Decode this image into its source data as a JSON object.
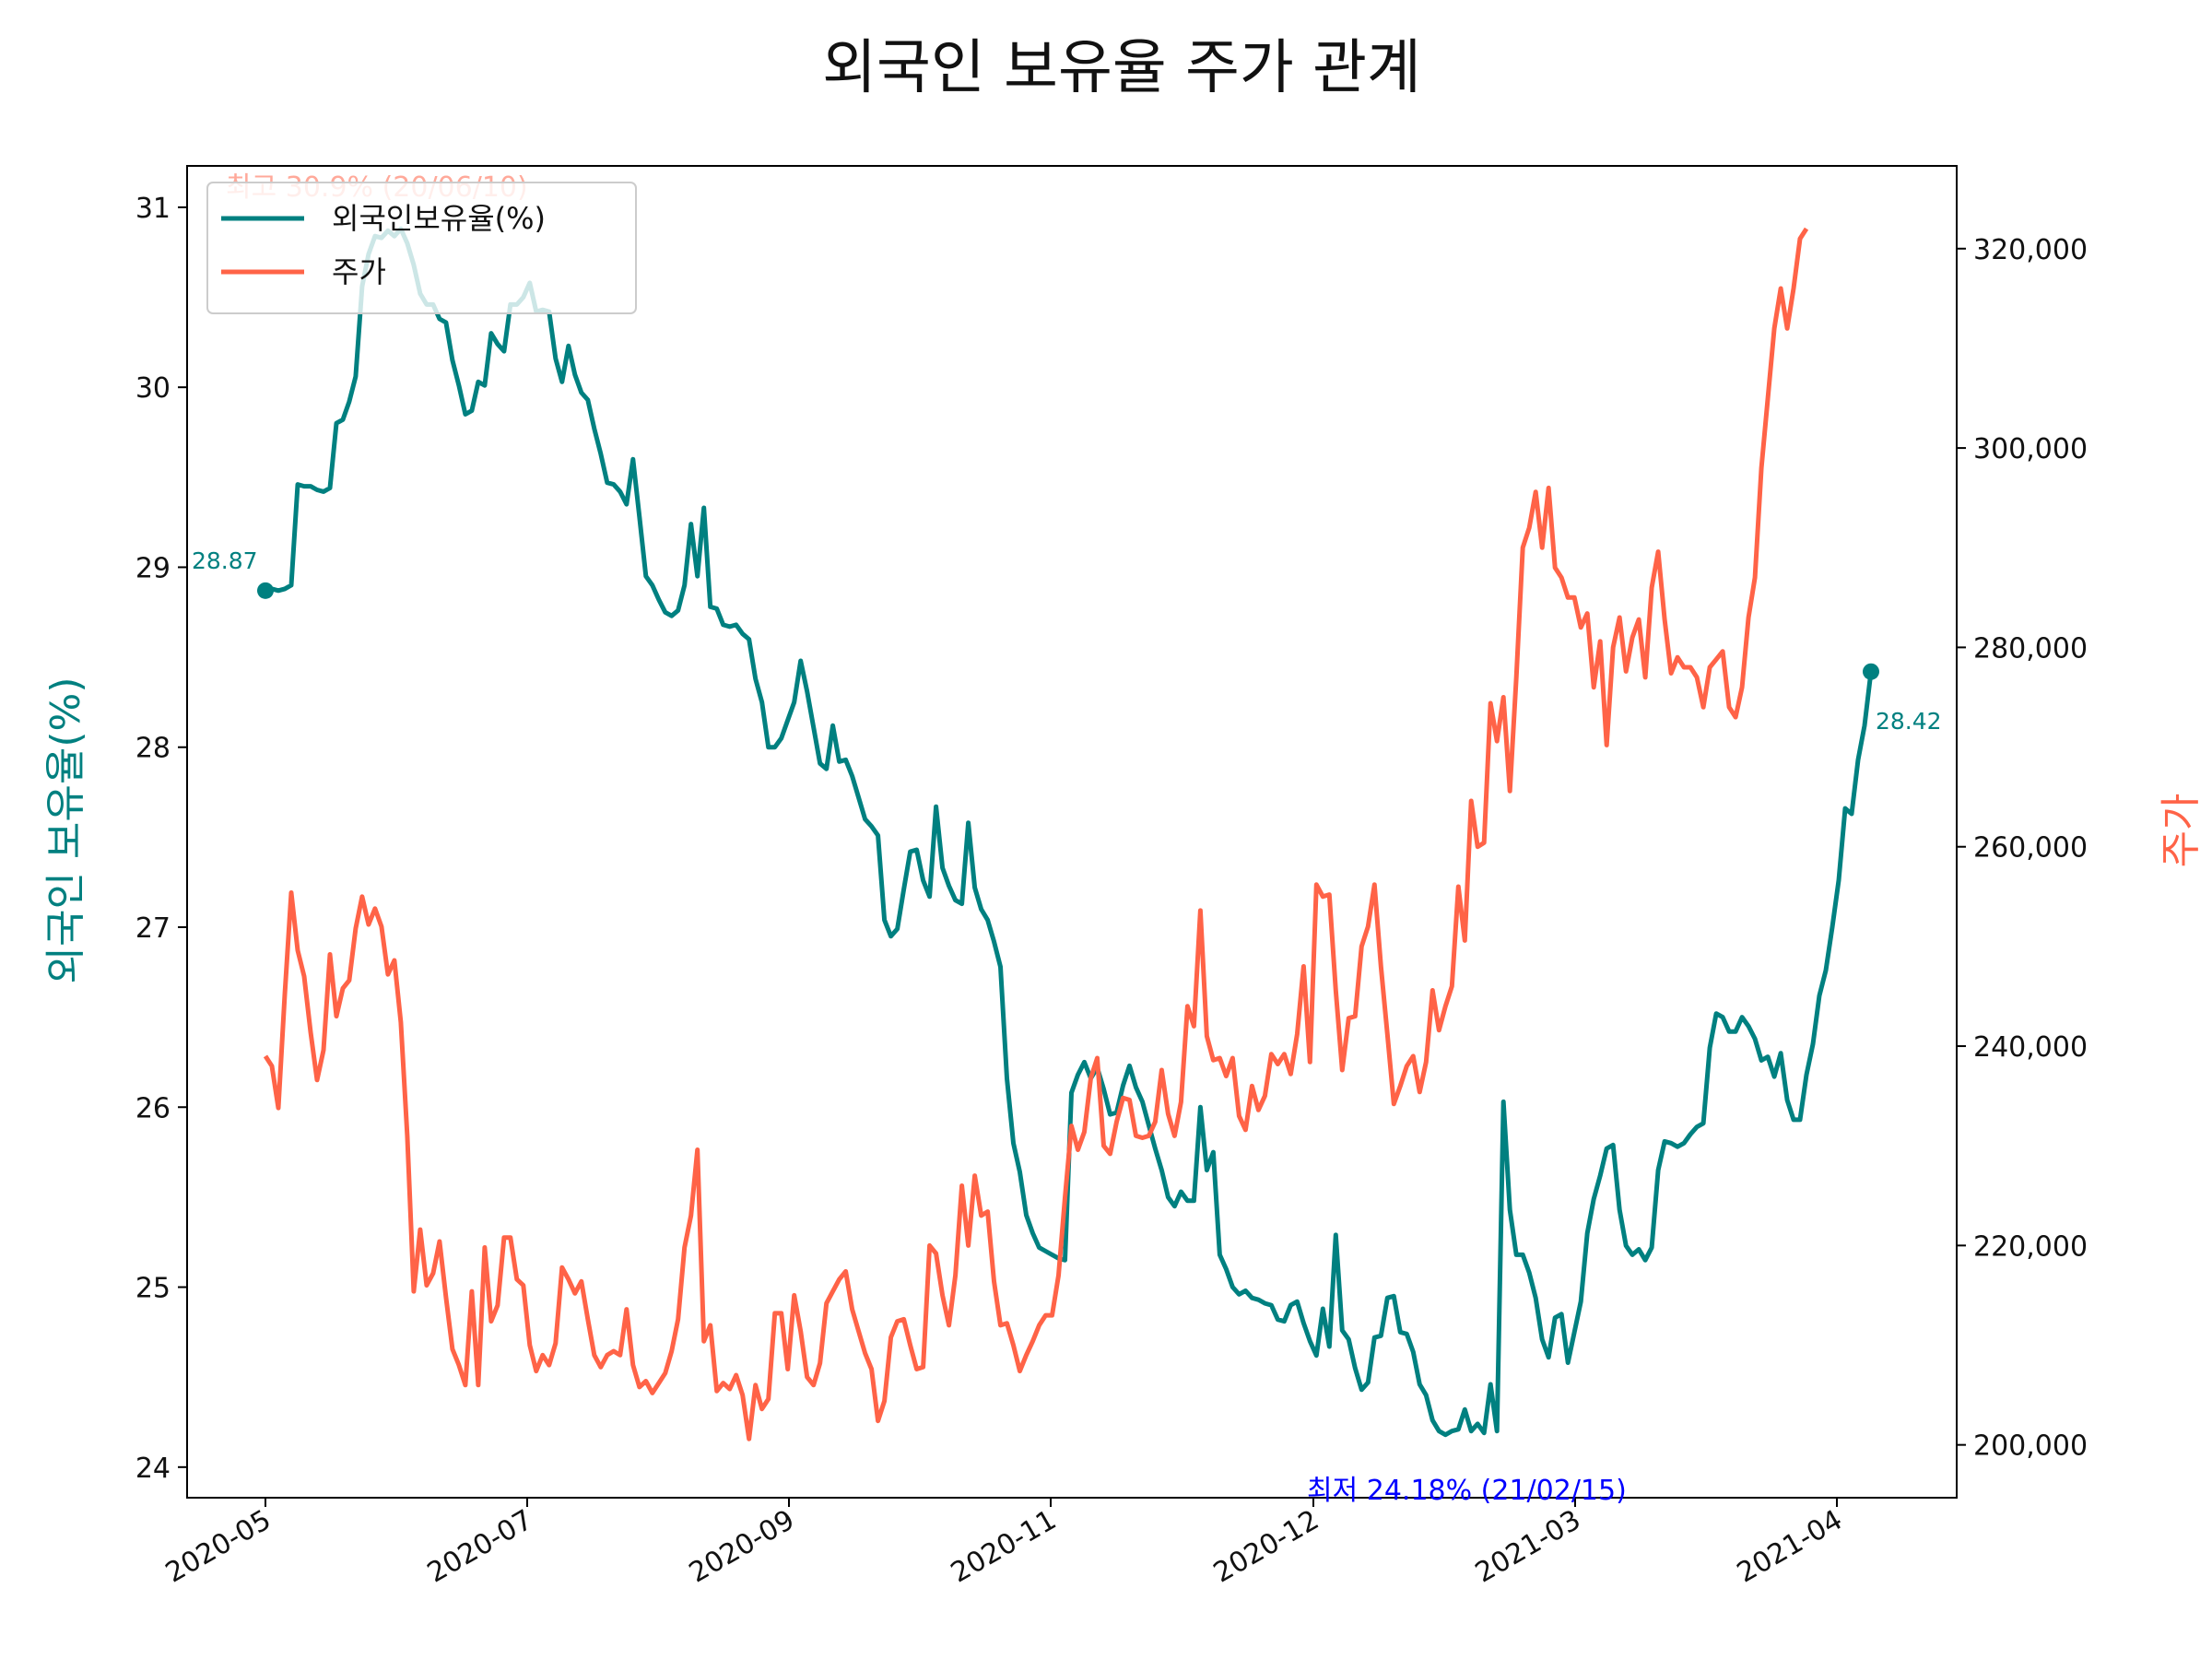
{
  "chart_data": {
    "type": "line",
    "title": "외국인 보유율 주가 관계",
    "ylabel_left": "외국인 보유율(%)",
    "ylabel_right": "주가",
    "xlabel": "",
    "x_tick_labels": [
      "2020-05",
      "2020-07",
      "2020-09",
      "2020-11",
      "2020-12",
      "2021-03",
      "2021-04"
    ],
    "y_left_ticks": [
      "24",
      "25",
      "26",
      "27",
      "28",
      "29",
      "30",
      "31"
    ],
    "y_right_ticks": [
      "200,000",
      "220,000",
      "240,000",
      "260,000",
      "280,000",
      "300,000",
      "320,000"
    ],
    "y_left_range": [
      23.83,
      31.23
    ],
    "y_right_range": [
      194700,
      328300
    ],
    "legend_position": "top-left",
    "grid": false,
    "series": [
      {
        "name": "외국인보유율(%)",
        "axis": "left",
        "color": "#008080",
        "values": [
          28.87,
          28.88,
          28.87,
          28.88,
          28.9,
          29.46,
          29.45,
          29.45,
          29.43,
          29.42,
          29.44,
          29.8,
          29.82,
          29.92,
          30.06,
          30.56,
          30.74,
          30.84,
          30.83,
          30.87,
          30.84,
          30.88,
          30.8,
          30.68,
          30.52,
          30.46,
          30.46,
          30.38,
          30.36,
          30.15,
          30.01,
          29.85,
          29.87,
          30.03,
          30.01,
          30.3,
          30.24,
          30.2,
          30.46,
          30.46,
          30.5,
          30.58,
          30.42,
          30.43,
          30.42,
          30.16,
          30.03,
          30.23,
          30.07,
          29.97,
          29.93,
          29.77,
          29.63,
          29.47,
          29.46,
          29.42,
          29.35,
          29.6,
          29.28,
          28.95,
          28.9,
          28.82,
          28.75,
          28.73,
          28.76,
          28.9,
          29.24,
          28.95,
          29.33,
          28.78,
          28.77,
          28.68,
          28.67,
          28.68,
          28.63,
          28.6,
          28.38,
          28.25,
          28.0,
          28.0,
          28.05,
          28.15,
          28.25,
          28.48,
          28.31,
          28.11,
          27.91,
          27.88,
          28.12,
          27.92,
          27.93,
          27.84,
          27.72,
          27.6,
          27.56,
          27.51,
          27.04,
          26.95,
          26.99,
          27.21,
          27.42,
          27.43,
          27.26,
          27.17,
          27.67,
          27.33,
          27.23,
          27.15,
          27.13,
          27.58,
          27.22,
          27.1,
          27.04,
          26.92,
          26.78,
          26.16,
          25.8,
          25.64,
          25.4,
          25.3,
          25.22,
          25.2,
          25.18,
          25.16,
          25.15,
          26.08,
          26.18,
          26.25,
          26.16,
          26.22,
          26.1,
          25.96,
          25.97,
          26.12,
          26.23,
          26.11,
          26.03,
          25.9,
          25.77,
          25.65,
          25.5,
          25.45,
          25.53,
          25.48,
          25.48,
          26.0,
          25.65,
          25.75,
          25.18,
          25.1,
          25.0,
          24.96,
          24.98,
          24.94,
          24.93,
          24.91,
          24.9,
          24.82,
          24.81,
          24.9,
          24.92,
          24.8,
          24.7,
          24.62,
          24.88,
          24.67,
          25.29,
          24.76,
          24.71,
          24.55,
          24.43,
          24.47,
          24.72,
          24.73,
          24.94,
          24.95,
          24.75,
          24.74,
          24.64,
          24.46,
          24.4,
          24.26,
          24.2,
          24.18,
          24.2,
          24.21,
          24.32,
          24.2,
          24.24,
          24.19,
          24.46,
          24.2,
          26.03,
          25.43,
          25.18,
          25.18,
          25.08,
          24.94,
          24.71,
          24.61,
          24.83,
          24.85,
          24.58,
          24.75,
          24.92,
          25.3,
          25.49,
          25.62,
          25.77,
          25.79,
          25.43,
          25.23,
          25.18,
          25.21,
          25.15,
          25.22,
          25.65,
          25.81,
          25.8,
          25.78,
          25.8,
          25.85,
          25.89,
          25.91,
          26.33,
          26.52,
          26.5,
          26.42,
          26.42,
          26.5,
          26.45,
          26.38,
          26.26,
          26.28,
          26.17,
          26.3,
          26.04,
          25.93,
          25.93,
          26.18,
          26.35,
          26.62,
          26.76,
          27.0,
          27.26,
          27.66,
          27.63,
          27.93,
          28.12,
          28.42
        ]
      },
      {
        "name": "주가",
        "axis": "right",
        "color": "#FF6347",
        "values": [
          239000,
          238000,
          233800,
          245200,
          255400,
          249600,
          247000,
          241400,
          236600,
          239600,
          249200,
          243000,
          245800,
          246600,
          251800,
          255000,
          252200,
          253800,
          252000,
          247200,
          248600,
          242400,
          231000,
          215400,
          221600,
          216000,
          217200,
          220400,
          214800,
          209600,
          208000,
          206000,
          215400,
          206000,
          219800,
          212400,
          214000,
          220800,
          220800,
          216600,
          216000,
          210000,
          207400,
          209000,
          208000,
          210200,
          217800,
          216600,
          215200,
          216400,
          212600,
          209000,
          207800,
          209000,
          209400,
          209000,
          213600,
          208000,
          205800,
          206400,
          205200,
          206200,
          207200,
          209400,
          212600,
          219800,
          223000,
          229600,
          210400,
          212000,
          205400,
          206200,
          205600,
          207000,
          205000,
          200600,
          206000,
          203600,
          204600,
          213200,
          213200,
          207600,
          215000,
          211400,
          206800,
          206000,
          208200,
          214200,
          215400,
          216600,
          217400,
          213600,
          211400,
          209200,
          207600,
          202400,
          204400,
          210800,
          212400,
          212600,
          210000,
          207600,
          207800,
          220000,
          219200,
          215000,
          212000,
          217000,
          226000,
          220000,
          227000,
          223000,
          223400,
          216400,
          212000,
          212200,
          210000,
          207400,
          209000,
          210400,
          212000,
          213000,
          213000,
          217000,
          224800,
          232000,
          229600,
          231400,
          236800,
          238800,
          230000,
          229200,
          232400,
          234800,
          234600,
          231000,
          230800,
          231000,
          232400,
          237600,
          233200,
          231000,
          234400,
          244000,
          242000,
          253600,
          241000,
          238600,
          238800,
          237000,
          238800,
          233000,
          231600,
          236000,
          233600,
          235000,
          239200,
          238200,
          239200,
          237200,
          241200,
          248000,
          238400,
          256200,
          255000,
          255200,
          245600,
          237600,
          242800,
          243000,
          250000,
          252000,
          256200,
          248000,
          241200,
          234200,
          236000,
          238000,
          239000,
          235400,
          238400,
          245600,
          241600,
          244000,
          246000,
          256000,
          250600,
          264600,
          260000,
          260400,
          274400,
          270600,
          275000,
          265600,
          277000,
          290000,
          292000,
          295600,
          290000,
          296000,
          288000,
          287000,
          285000,
          285000,
          282000,
          283400,
          276000,
          280600,
          270200,
          280000,
          283000,
          277600,
          281000,
          282800,
          277000,
          286000,
          289600,
          282800,
          277400,
          279000,
          278000,
          278000,
          277000,
          274000,
          278000,
          278800,
          279600,
          274000,
          273000,
          276000,
          283000,
          287000,
          298000,
          305000,
          312000,
          316000,
          312000,
          316000,
          321000,
          322000
        ]
      }
    ],
    "annotations": {
      "start_value": "28.87",
      "end_value": "28.42",
      "max_label": "최고 30.9% (20/06/10)",
      "min_label": "최저 24.18% (21/02/15)"
    }
  }
}
